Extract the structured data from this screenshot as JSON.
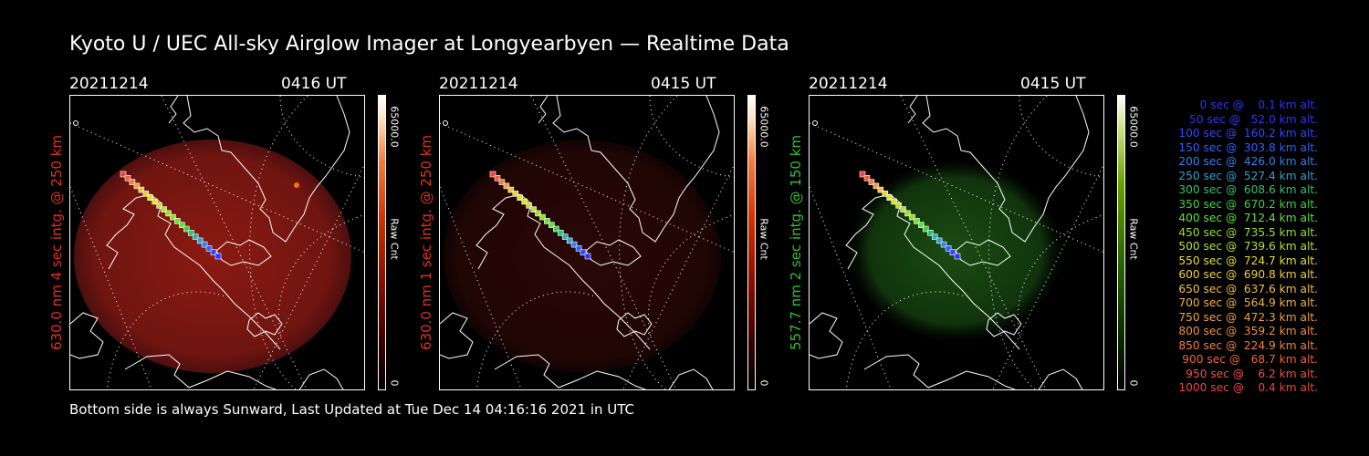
{
  "title": "Kyoto U / UEC All-sky Airglow Imager at Longyearbyen — Realtime Data",
  "panels": [
    {
      "date": "20211214",
      "time": "0416 UT",
      "side_label": "630.0 nm 4 sec intg. @ 250 km",
      "label_color": "#e03020",
      "colorbar_max": "65000.0",
      "colorbar_unit": "Raw Cnt",
      "colorbar_min": "0",
      "colormap": "red"
    },
    {
      "date": "20211214",
      "time": "0415 UT",
      "side_label": "630.0 nm 1 sec intg. @ 250 km",
      "label_color": "#e03020",
      "colorbar_max": "65000.0",
      "colorbar_unit": "Raw Cnt",
      "colorbar_min": "0",
      "colormap": "red"
    },
    {
      "date": "20211214",
      "time": "0415 UT",
      "side_label": "557.7 nm 2 sec intg. @ 150 km",
      "label_color": "#30c030",
      "colorbar_max": "65000.0",
      "colorbar_unit": "Raw Cnt",
      "colorbar_min": "0",
      "colormap": "green"
    }
  ],
  "legend": [
    {
      "text": "   0 sec @    0.1 km alt.",
      "color": "#3030ff"
    },
    {
      "text": "  50 sec @   52.0 km alt.",
      "color": "#3030ff"
    },
    {
      "text": " 100 sec @  160.2 km alt.",
      "color": "#3048ff"
    },
    {
      "text": " 150 sec @  303.8 km alt.",
      "color": "#3060ff"
    },
    {
      "text": " 200 sec @  426.0 km alt.",
      "color": "#3080f0"
    },
    {
      "text": " 250 sec @  527.4 km alt.",
      "color": "#30a0d0"
    },
    {
      "text": " 300 sec @  608.6 km alt.",
      "color": "#30c070"
    },
    {
      "text": " 350 sec @  670.2 km alt.",
      "color": "#40d040"
    },
    {
      "text": " 400 sec @  712.4 km alt.",
      "color": "#60e040"
    },
    {
      "text": " 450 sec @  735.5 km alt.",
      "color": "#90e030"
    },
    {
      "text": " 500 sec @  739.6 km alt.",
      "color": "#b8e030"
    },
    {
      "text": " 550 sec @  724.7 km alt.",
      "color": "#e0e030"
    },
    {
      "text": " 600 sec @  690.8 km alt.",
      "color": "#f0d030"
    },
    {
      "text": " 650 sec @  637.6 km alt.",
      "color": "#f0c040"
    },
    {
      "text": " 700 sec @  564.9 km alt.",
      "color": "#f0b040"
    },
    {
      "text": " 750 sec @  472.3 km alt.",
      "color": "#f0a040"
    },
    {
      "text": " 800 sec @  359.2 km alt.",
      "color": "#f09040"
    },
    {
      "text": " 850 sec @  224.9 km alt.",
      "color": "#f08040"
    },
    {
      "text": " 900 sec @   68.7 km alt.",
      "color": "#f06040"
    },
    {
      "text": " 950 sec @    6.2 km alt.",
      "color": "#f05040"
    },
    {
      "text": "1000 sec @    0.4 km alt.",
      "color": "#f04040"
    }
  ],
  "footer": "Bottom side is always Sunward, Last Updated at Tue Dec 14 04:16:16 2021 in UTC"
}
